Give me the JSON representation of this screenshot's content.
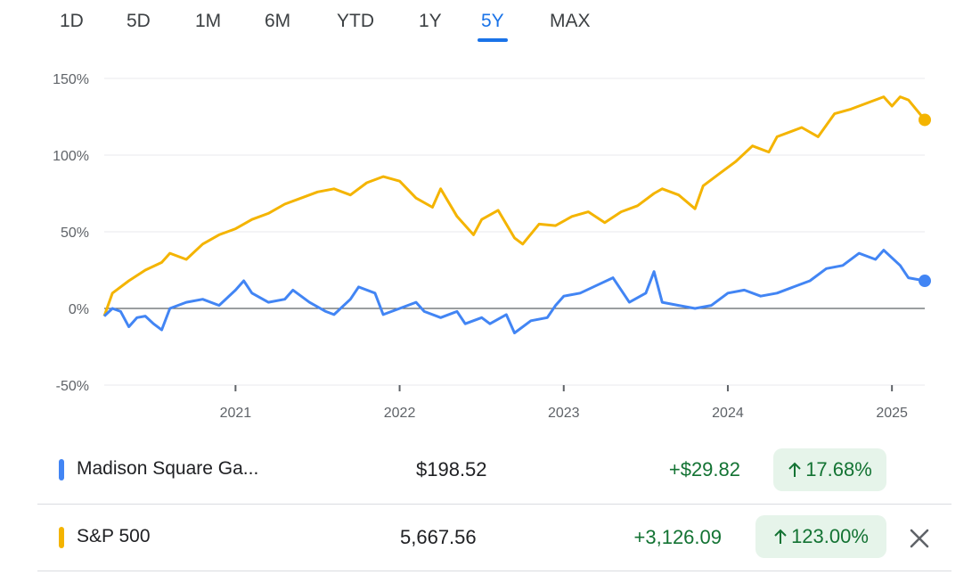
{
  "tabs": [
    {
      "label": "1D",
      "active": false
    },
    {
      "label": "5D",
      "active": false
    },
    {
      "label": "1M",
      "active": false
    },
    {
      "label": "6M",
      "active": false
    },
    {
      "label": "YTD",
      "active": false
    },
    {
      "label": "1Y",
      "active": false
    },
    {
      "label": "5Y",
      "active": true
    },
    {
      "label": "MAX",
      "active": false
    }
  ],
  "chart_data": {
    "type": "line",
    "y_ticks": [
      "150%",
      "100%",
      "50%",
      "0%",
      "-50%"
    ],
    "x_ticks": [
      "2021",
      "2022",
      "2023",
      "2024",
      "2025"
    ],
    "ylim": [
      -50,
      150
    ],
    "xlim": [
      2020.2,
      2025.2
    ],
    "grid": true,
    "series": [
      {
        "name": "S&P 500",
        "color": "#f4b400",
        "points": [
          [
            2020.2,
            -5
          ],
          [
            2020.25,
            10
          ],
          [
            2020.35,
            18
          ],
          [
            2020.45,
            25
          ],
          [
            2020.55,
            30
          ],
          [
            2020.6,
            36
          ],
          [
            2020.7,
            32
          ],
          [
            2020.8,
            42
          ],
          [
            2020.9,
            48
          ],
          [
            2021.0,
            52
          ],
          [
            2021.1,
            58
          ],
          [
            2021.2,
            62
          ],
          [
            2021.3,
            68
          ],
          [
            2021.4,
            72
          ],
          [
            2021.5,
            76
          ],
          [
            2021.6,
            78
          ],
          [
            2021.7,
            74
          ],
          [
            2021.8,
            82
          ],
          [
            2021.9,
            86
          ],
          [
            2022.0,
            83
          ],
          [
            2022.1,
            72
          ],
          [
            2022.2,
            66
          ],
          [
            2022.25,
            78
          ],
          [
            2022.35,
            60
          ],
          [
            2022.45,
            48
          ],
          [
            2022.5,
            58
          ],
          [
            2022.6,
            64
          ],
          [
            2022.7,
            46
          ],
          [
            2022.75,
            42
          ],
          [
            2022.85,
            55
          ],
          [
            2022.95,
            54
          ],
          [
            2023.05,
            60
          ],
          [
            2023.15,
            63
          ],
          [
            2023.25,
            56
          ],
          [
            2023.35,
            63
          ],
          [
            2023.45,
            67
          ],
          [
            2023.55,
            75
          ],
          [
            2023.6,
            78
          ],
          [
            2023.7,
            74
          ],
          [
            2023.8,
            65
          ],
          [
            2023.85,
            80
          ],
          [
            2023.95,
            88
          ],
          [
            2024.05,
            96
          ],
          [
            2024.15,
            106
          ],
          [
            2024.25,
            102
          ],
          [
            2024.3,
            112
          ],
          [
            2024.45,
            118
          ],
          [
            2024.55,
            112
          ],
          [
            2024.65,
            127
          ],
          [
            2024.75,
            130
          ],
          [
            2024.85,
            134
          ],
          [
            2024.95,
            138
          ],
          [
            2025.0,
            132
          ],
          [
            2025.05,
            138
          ],
          [
            2025.1,
            136
          ],
          [
            2025.2,
            123
          ]
        ]
      },
      {
        "name": "Madison Square Ga...",
        "color": "#4285f4",
        "points": [
          [
            2020.2,
            -5
          ],
          [
            2020.25,
            0
          ],
          [
            2020.3,
            -2
          ],
          [
            2020.35,
            -12
          ],
          [
            2020.4,
            -6
          ],
          [
            2020.45,
            -5
          ],
          [
            2020.5,
            -10
          ],
          [
            2020.55,
            -14
          ],
          [
            2020.6,
            0
          ],
          [
            2020.7,
            4
          ],
          [
            2020.8,
            6
          ],
          [
            2020.9,
            2
          ],
          [
            2021.0,
            12
          ],
          [
            2021.05,
            18
          ],
          [
            2021.1,
            10
          ],
          [
            2021.2,
            4
          ],
          [
            2021.3,
            6
          ],
          [
            2021.35,
            12
          ],
          [
            2021.45,
            4
          ],
          [
            2021.55,
            -2
          ],
          [
            2021.6,
            -4
          ],
          [
            2021.7,
            6
          ],
          [
            2021.75,
            14
          ],
          [
            2021.85,
            10
          ],
          [
            2021.9,
            -4
          ],
          [
            2022.0,
            0
          ],
          [
            2022.1,
            4
          ],
          [
            2022.15,
            -2
          ],
          [
            2022.25,
            -6
          ],
          [
            2022.35,
            -2
          ],
          [
            2022.4,
            -10
          ],
          [
            2022.5,
            -6
          ],
          [
            2022.55,
            -10
          ],
          [
            2022.65,
            -4
          ],
          [
            2022.7,
            -16
          ],
          [
            2022.8,
            -8
          ],
          [
            2022.9,
            -6
          ],
          [
            2022.95,
            2
          ],
          [
            2023.0,
            8
          ],
          [
            2023.1,
            10
          ],
          [
            2023.2,
            15
          ],
          [
            2023.3,
            20
          ],
          [
            2023.4,
            4
          ],
          [
            2023.5,
            10
          ],
          [
            2023.55,
            24
          ],
          [
            2023.6,
            4
          ],
          [
            2023.7,
            2
          ],
          [
            2023.8,
            0
          ],
          [
            2023.9,
            2
          ],
          [
            2024.0,
            10
          ],
          [
            2024.1,
            12
          ],
          [
            2024.2,
            8
          ],
          [
            2024.3,
            10
          ],
          [
            2024.4,
            14
          ],
          [
            2024.5,
            18
          ],
          [
            2024.6,
            26
          ],
          [
            2024.7,
            28
          ],
          [
            2024.8,
            36
          ],
          [
            2024.9,
            32
          ],
          [
            2024.95,
            38
          ],
          [
            2025.05,
            28
          ],
          [
            2025.1,
            20
          ],
          [
            2025.2,
            18
          ]
        ]
      }
    ]
  },
  "rows": [
    {
      "name": "Madison Square Ga...",
      "price": "$198.52",
      "change": "+$29.82",
      "percent": "17.68%",
      "color": "#4285f4"
    },
    {
      "name": "S&P 500",
      "price": "5,667.56",
      "change": "+3,126.09",
      "percent": "123.00%",
      "color": "#f4b400"
    }
  ],
  "icons": {
    "arrow": "arrow-up-icon",
    "close": "close-icon"
  }
}
